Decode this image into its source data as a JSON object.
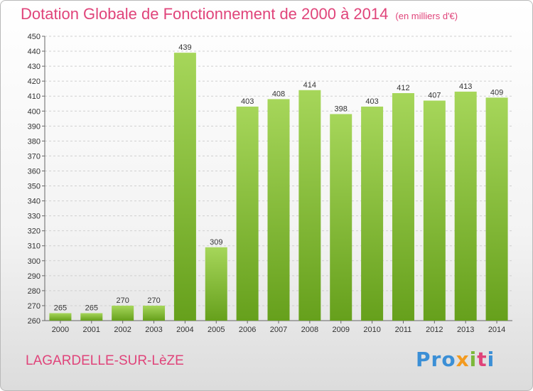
{
  "chart_data": {
    "type": "bar",
    "title": "Dotation Globale de Fonctionnement de 2000 à 2014",
    "subtitle": "(en milliers d'€)",
    "categories": [
      "2000",
      "2001",
      "2002",
      "2003",
      "2004",
      "2005",
      "2006",
      "2007",
      "2008",
      "2009",
      "2010",
      "2011",
      "2012",
      "2013",
      "2014"
    ],
    "values": [
      265,
      265,
      270,
      270,
      439,
      309,
      403,
      408,
      414,
      398,
      403,
      412,
      407,
      413,
      409
    ],
    "ylim": [
      260,
      450
    ],
    "yticks": [
      260,
      270,
      280,
      290,
      300,
      310,
      320,
      330,
      340,
      350,
      360,
      370,
      380,
      390,
      400,
      410,
      420,
      430,
      440,
      450
    ],
    "xlabel": "",
    "ylabel": "",
    "grid": true,
    "bar_color": "#7db832",
    "bar_color_light": "#a6d65a"
  },
  "commune": "LAGARDELLE-SUR-LèZE",
  "logo": {
    "text_parts": [
      "Pro",
      "x",
      "i",
      "t",
      "i"
    ]
  }
}
